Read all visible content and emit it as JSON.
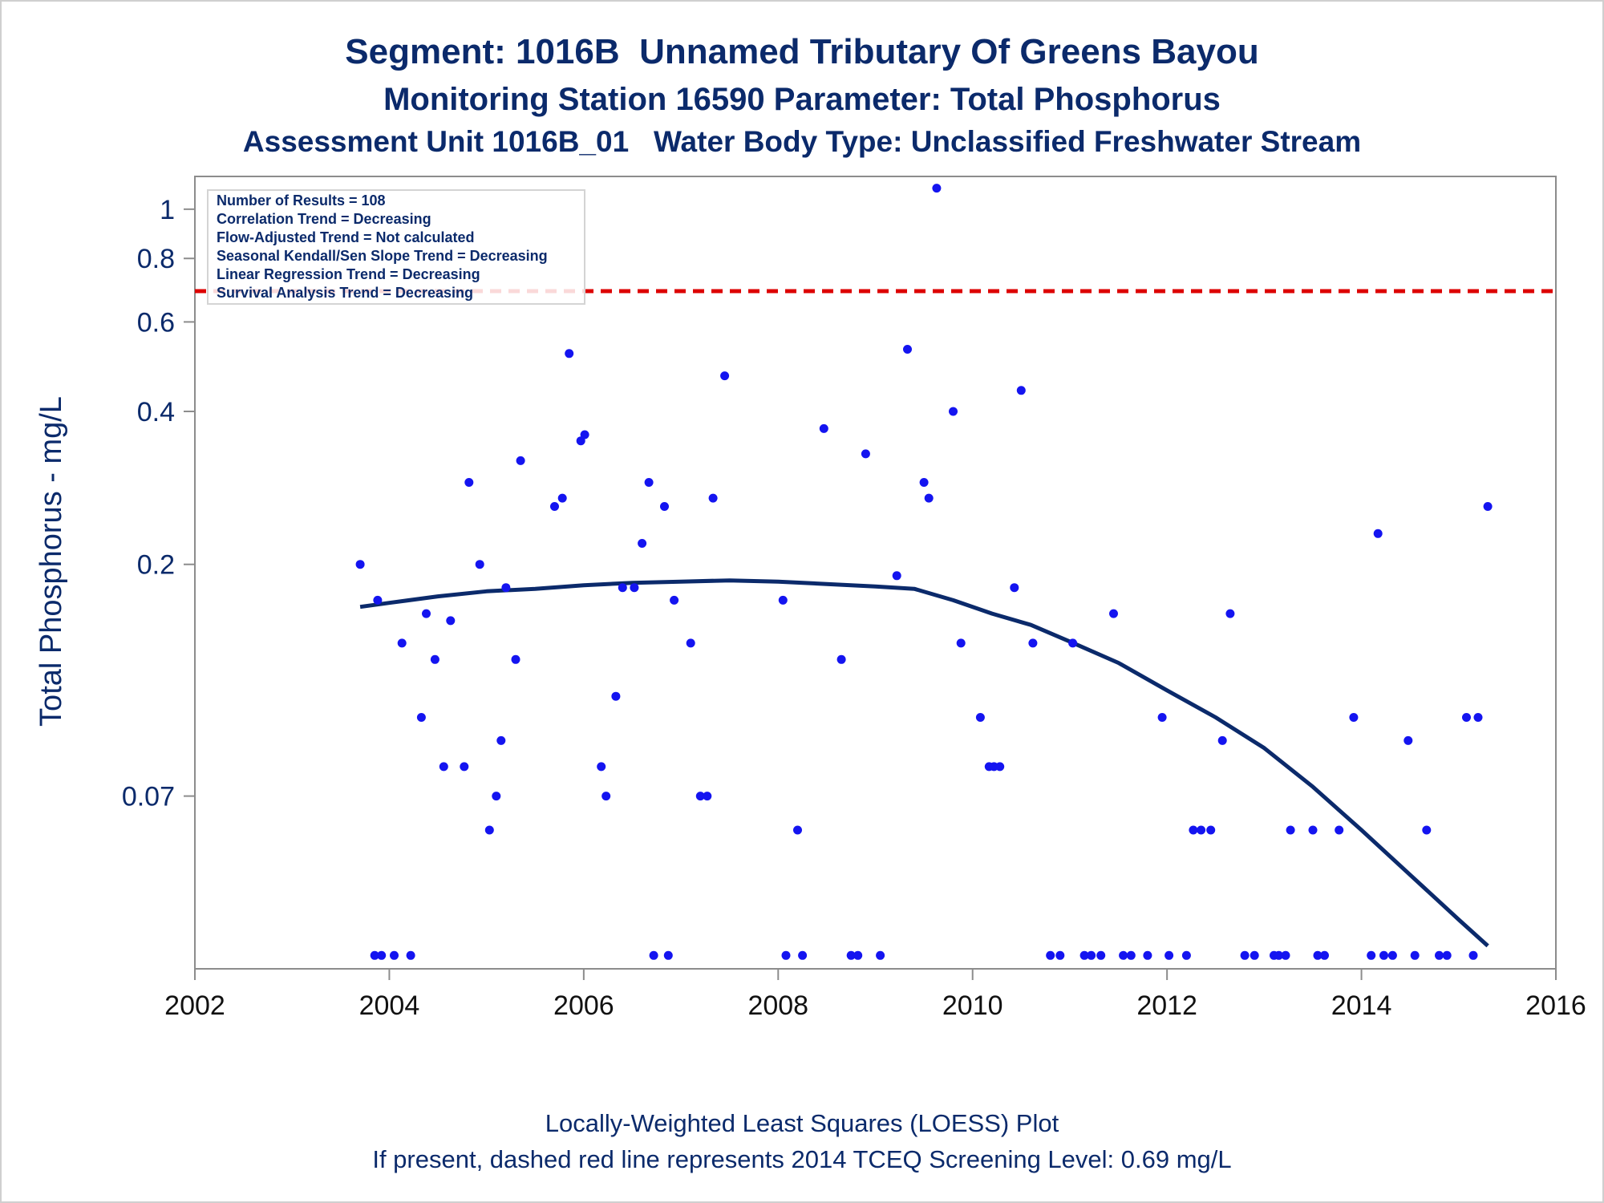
{
  "titles": {
    "line1": "Segment: 1016B  Unnamed Tributary Of Greens Bayou",
    "line2": "Monitoring Station 16590 Parameter: Total Phosphorus",
    "line3": "Assessment Unit 1016B_01   Water Body Type: Unclassified Freshwater Stream"
  },
  "footnotes": {
    "line1": "Locally-Weighted Least Squares (LOESS) Plot",
    "line2": "If present, dashed red line represents 2014 TCEQ Screening Level: 0.69 mg/L"
  },
  "stats_box": {
    "lines": [
      "Number of Results = 108",
      "Correlation Trend = Decreasing",
      "Flow-Adjusted Trend = Not calculated",
      "Seasonal Kendall/Sen Slope Trend = Decreasing",
      "Linear Regression Trend = Decreasing",
      "Survival Analysis Trend = Decreasing"
    ]
  },
  "colors": {
    "text": "#0b2a6b",
    "points": "#1414f0",
    "loess": "#0b2a6b",
    "screening_line": "#dd0000",
    "axis": "#8c8c8c"
  },
  "chart_data": {
    "type": "scatter",
    "title": "Segment: 1016B  Unnamed Tributary Of Greens Bayou",
    "xlabel": "",
    "ylabel": "Total Phosphorus - mg/L",
    "x_scale": "linear",
    "y_scale": "log",
    "xlim": [
      2002,
      2016
    ],
    "ylim": [
      0.032,
      1.16
    ],
    "x_ticks": [
      "2002",
      "2004",
      "2006",
      "2008",
      "2010",
      "2012",
      "2014",
      "2016"
    ],
    "y_ticks": [
      {
        "value": 0.07,
        "label": "0.07"
      },
      {
        "value": 0.2,
        "label": "0.2"
      },
      {
        "value": 0.4,
        "label": "0.4"
      },
      {
        "value": 0.6,
        "label": "0.6"
      },
      {
        "value": 0.8,
        "label": "0.8"
      },
      {
        "value": 1.0,
        "label": "1"
      }
    ],
    "grid": false,
    "legend": "none",
    "reference_line": {
      "value": 0.69,
      "style": "dashed"
    },
    "series": [
      {
        "type": "scatter",
        "points": [
          [
            2003.7,
            0.2
          ],
          [
            2003.88,
            0.17
          ],
          [
            2004.13,
            0.14
          ],
          [
            2004.33,
            0.1
          ],
          [
            2004.38,
            0.16
          ],
          [
            2004.47,
            0.13
          ],
          [
            2004.56,
            0.08
          ],
          [
            2004.63,
            0.155
          ],
          [
            2004.77,
            0.08
          ],
          [
            2004.82,
            0.29
          ],
          [
            2004.93,
            0.2
          ],
          [
            2005.03,
            0.06
          ],
          [
            2005.1,
            0.07
          ],
          [
            2005.15,
            0.09
          ],
          [
            2005.2,
            0.18
          ],
          [
            2005.3,
            0.13
          ],
          [
            2005.35,
            0.32
          ],
          [
            2005.7,
            0.26
          ],
          [
            2005.78,
            0.27
          ],
          [
            2005.85,
            0.52
          ],
          [
            2005.97,
            0.35
          ],
          [
            2006.01,
            0.36
          ],
          [
            2006.18,
            0.08
          ],
          [
            2006.23,
            0.07
          ],
          [
            2006.33,
            0.11
          ],
          [
            2006.4,
            0.18
          ],
          [
            2006.52,
            0.18
          ],
          [
            2006.6,
            0.22
          ],
          [
            2006.67,
            0.29
          ],
          [
            2006.83,
            0.26
          ],
          [
            2006.93,
            0.17
          ],
          [
            2007.1,
            0.14
          ],
          [
            2007.2,
            0.07
          ],
          [
            2007.27,
            0.07
          ],
          [
            2007.33,
            0.27
          ],
          [
            2007.45,
            0.47
          ],
          [
            2008.05,
            0.17
          ],
          [
            2008.2,
            0.06
          ],
          [
            2008.47,
            0.37
          ],
          [
            2008.65,
            0.13
          ],
          [
            2008.9,
            0.33
          ],
          [
            2009.22,
            0.19
          ],
          [
            2009.33,
            0.53
          ],
          [
            2009.5,
            0.29
          ],
          [
            2009.55,
            0.27
          ],
          [
            2009.63,
            1.1
          ],
          [
            2009.8,
            0.4
          ],
          [
            2009.88,
            0.14
          ],
          [
            2010.08,
            0.1
          ],
          [
            2010.17,
            0.08
          ],
          [
            2010.22,
            0.08
          ],
          [
            2010.28,
            0.08
          ],
          [
            2010.43,
            0.18
          ],
          [
            2010.5,
            0.44
          ],
          [
            2010.62,
            0.14
          ],
          [
            2011.03,
            0.14
          ],
          [
            2011.45,
            0.16
          ],
          [
            2011.95,
            0.1
          ],
          [
            2012.57,
            0.09
          ],
          [
            2012.65,
            0.16
          ],
          [
            2012.27,
            0.06
          ],
          [
            2012.35,
            0.06
          ],
          [
            2012.45,
            0.06
          ],
          [
            2013.27,
            0.06
          ],
          [
            2013.5,
            0.06
          ],
          [
            2013.77,
            0.06
          ],
          [
            2013.92,
            0.1
          ],
          [
            2014.17,
            0.23
          ],
          [
            2014.48,
            0.09
          ],
          [
            2014.67,
            0.06
          ],
          [
            2015.08,
            0.1
          ],
          [
            2015.2,
            0.1
          ],
          [
            2015.3,
            0.26
          ],
          [
            2003.85,
            0.034
          ],
          [
            2003.92,
            0.034
          ],
          [
            2004.05,
            0.034
          ],
          [
            2004.22,
            0.034
          ],
          [
            2006.72,
            0.034
          ],
          [
            2006.87,
            0.034
          ],
          [
            2008.08,
            0.034
          ],
          [
            2008.25,
            0.034
          ],
          [
            2008.75,
            0.034
          ],
          [
            2008.82,
            0.034
          ],
          [
            2009.05,
            0.034
          ],
          [
            2010.8,
            0.034
          ],
          [
            2010.9,
            0.034
          ],
          [
            2011.15,
            0.034
          ],
          [
            2011.22,
            0.034
          ],
          [
            2011.32,
            0.034
          ],
          [
            2011.55,
            0.034
          ],
          [
            2011.63,
            0.034
          ],
          [
            2011.8,
            0.034
          ],
          [
            2012.02,
            0.034
          ],
          [
            2012.2,
            0.034
          ],
          [
            2012.8,
            0.034
          ],
          [
            2012.9,
            0.034
          ],
          [
            2013.1,
            0.034
          ],
          [
            2013.15,
            0.034
          ],
          [
            2013.22,
            0.034
          ],
          [
            2013.55,
            0.034
          ],
          [
            2013.62,
            0.034
          ],
          [
            2014.1,
            0.034
          ],
          [
            2014.23,
            0.034
          ],
          [
            2014.32,
            0.034
          ],
          [
            2014.55,
            0.034
          ],
          [
            2014.8,
            0.034
          ],
          [
            2014.88,
            0.034
          ],
          [
            2015.15,
            0.034
          ]
        ]
      },
      {
        "type": "line",
        "points": [
          [
            2003.7,
            0.165
          ],
          [
            2004.0,
            0.168
          ],
          [
            2004.5,
            0.173
          ],
          [
            2005.0,
            0.177
          ],
          [
            2005.5,
            0.179
          ],
          [
            2006.0,
            0.182
          ],
          [
            2006.5,
            0.184
          ],
          [
            2007.0,
            0.185
          ],
          [
            2007.5,
            0.186
          ],
          [
            2008.0,
            0.185
          ],
          [
            2008.5,
            0.183
          ],
          [
            2009.0,
            0.181
          ],
          [
            2009.4,
            0.179
          ],
          [
            2009.8,
            0.17
          ],
          [
            2010.2,
            0.16
          ],
          [
            2010.6,
            0.152
          ],
          [
            2011.0,
            0.141
          ],
          [
            2011.5,
            0.128
          ],
          [
            2012.0,
            0.113
          ],
          [
            2012.5,
            0.1
          ],
          [
            2013.0,
            0.087
          ],
          [
            2013.5,
            0.073
          ],
          [
            2014.0,
            0.06
          ],
          [
            2014.5,
            0.049
          ],
          [
            2015.0,
            0.04
          ],
          [
            2015.3,
            0.0355
          ]
        ]
      }
    ]
  }
}
